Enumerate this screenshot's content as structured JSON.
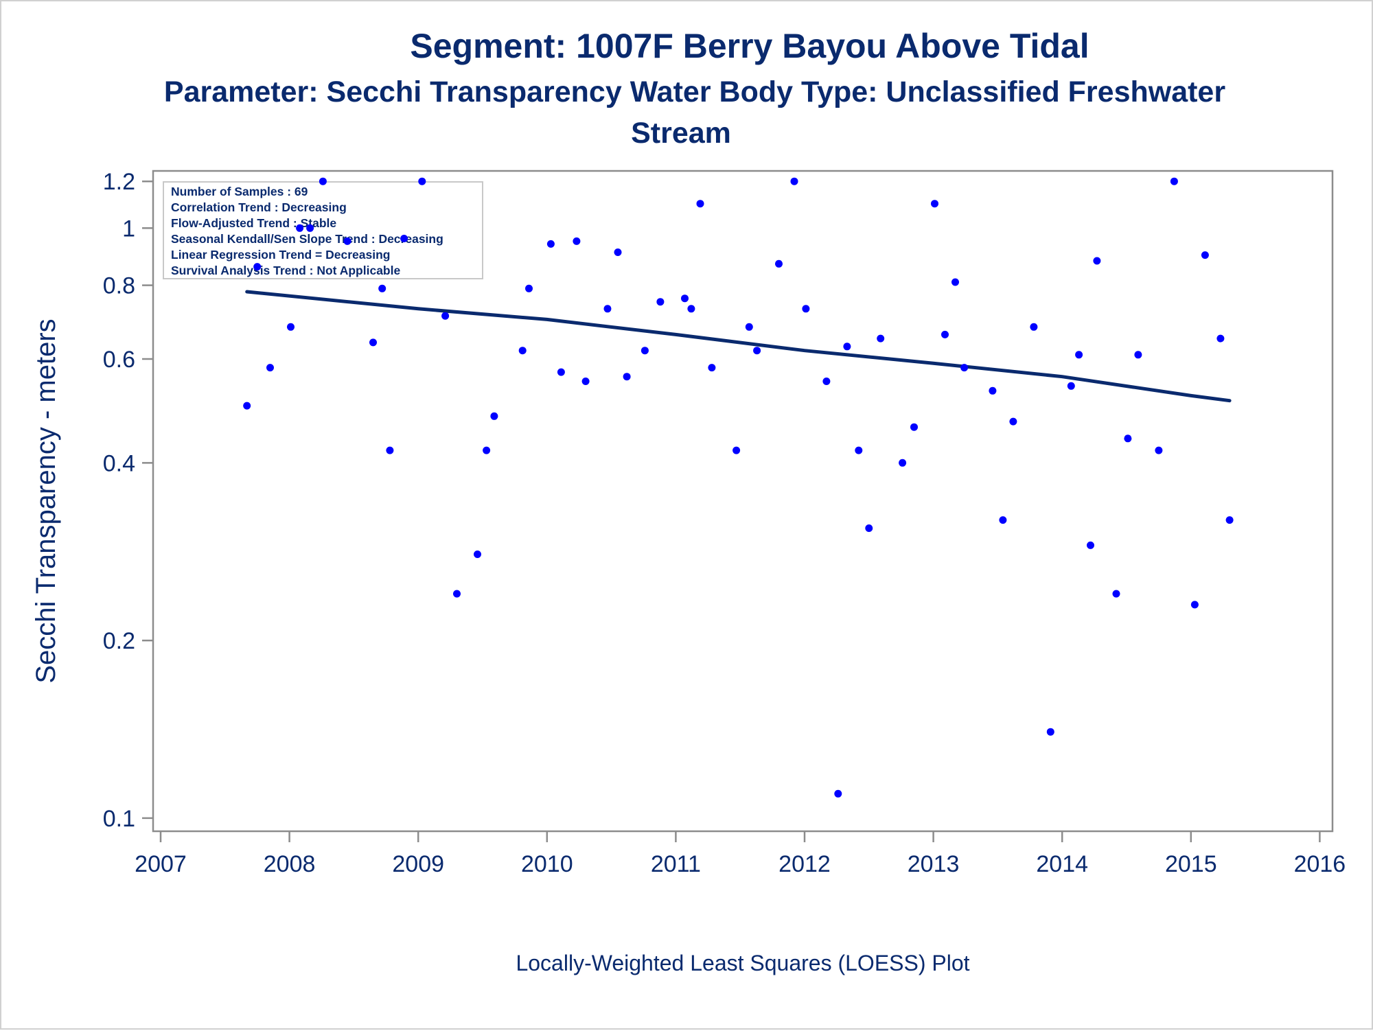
{
  "chart_data": {
    "type": "scatter",
    "title": "Segment: 1007F  Berry Bayou Above Tidal",
    "subtitle_line1": "Parameter: Secchi Transparency   Water Body Type: Unclassified Freshwater",
    "subtitle_line2": "Stream",
    "ylabel": "Secchi Transparency - meters",
    "footnote": "Locally-Weighted Least Squares (LOESS) Plot",
    "y_scale": "log",
    "ylim": [
      0.095,
      1.25
    ],
    "xlim": [
      2007,
      2016
    ],
    "yticks": [
      "0.1",
      "0.2",
      "0.4",
      "0.6",
      "0.8",
      "1",
      "1.2"
    ],
    "xticks": [
      "2007",
      "2008",
      "2009",
      "2010",
      "2011",
      "2012",
      "2013",
      "2014",
      "2015",
      "2016"
    ],
    "grid": false,
    "inset_position": "top-left",
    "inset_lines": [
      "Number of Samples : 69",
      "Correlation Trend : Decreasing",
      "Flow-Adjusted Trend : Stable",
      "Seasonal Kendall/Sen Slope Trend : Decreasing",
      "Linear Regression Trend = Decreasing",
      "Survival Analysis Trend : Not Applicable"
    ],
    "colors": {
      "points": "#0000ff",
      "trend_line": "#0a2a6e",
      "text": "#0a2a6e",
      "axis": "#8c8c8c"
    },
    "points": [
      {
        "x": 2007.67,
        "y": 0.5
      },
      {
        "x": 2007.75,
        "y": 0.86
      },
      {
        "x": 2007.85,
        "y": 0.58
      },
      {
        "x": 2008.01,
        "y": 0.68
      },
      {
        "x": 2008.08,
        "y": 1.0
      },
      {
        "x": 2008.16,
        "y": 1.0
      },
      {
        "x": 2008.26,
        "y": 1.2
      },
      {
        "x": 2008.45,
        "y": 0.95
      },
      {
        "x": 2008.65,
        "y": 0.64
      },
      {
        "x": 2008.72,
        "y": 0.79
      },
      {
        "x": 2008.78,
        "y": 0.42
      },
      {
        "x": 2008.89,
        "y": 0.96
      },
      {
        "x": 2009.03,
        "y": 1.2
      },
      {
        "x": 2009.21,
        "y": 0.71
      },
      {
        "x": 2009.3,
        "y": 0.24
      },
      {
        "x": 2009.46,
        "y": 0.28
      },
      {
        "x": 2009.53,
        "y": 0.42
      },
      {
        "x": 2009.59,
        "y": 0.48
      },
      {
        "x": 2009.81,
        "y": 0.62
      },
      {
        "x": 2009.86,
        "y": 0.79
      },
      {
        "x": 2010.03,
        "y": 0.94
      },
      {
        "x": 2010.11,
        "y": 0.57
      },
      {
        "x": 2010.23,
        "y": 0.95
      },
      {
        "x": 2010.3,
        "y": 0.55
      },
      {
        "x": 2010.47,
        "y": 0.73
      },
      {
        "x": 2010.55,
        "y": 0.91
      },
      {
        "x": 2010.62,
        "y": 0.56
      },
      {
        "x": 2010.76,
        "y": 0.62
      },
      {
        "x": 2010.88,
        "y": 0.75
      },
      {
        "x": 2011.07,
        "y": 0.76
      },
      {
        "x": 2011.12,
        "y": 0.73
      },
      {
        "x": 2011.19,
        "y": 1.1
      },
      {
        "x": 2011.28,
        "y": 0.58
      },
      {
        "x": 2011.47,
        "y": 0.42
      },
      {
        "x": 2011.57,
        "y": 0.68
      },
      {
        "x": 2011.63,
        "y": 0.62
      },
      {
        "x": 2011.8,
        "y": 0.87
      },
      {
        "x": 2011.92,
        "y": 1.2
      },
      {
        "x": 2012.01,
        "y": 0.73
      },
      {
        "x": 2012.17,
        "y": 0.55
      },
      {
        "x": 2012.26,
        "y": 0.11
      },
      {
        "x": 2012.33,
        "y": 0.63
      },
      {
        "x": 2012.42,
        "y": 0.42
      },
      {
        "x": 2012.5,
        "y": 0.31
      },
      {
        "x": 2012.59,
        "y": 0.65
      },
      {
        "x": 2012.76,
        "y": 0.4
      },
      {
        "x": 2012.85,
        "y": 0.46
      },
      {
        "x": 2013.01,
        "y": 1.1
      },
      {
        "x": 2013.09,
        "y": 0.66
      },
      {
        "x": 2013.17,
        "y": 0.81
      },
      {
        "x": 2013.24,
        "y": 0.58
      },
      {
        "x": 2013.46,
        "y": 0.53
      },
      {
        "x": 2013.54,
        "y": 0.32
      },
      {
        "x": 2013.62,
        "y": 0.47
      },
      {
        "x": 2013.78,
        "y": 0.68
      },
      {
        "x": 2013.91,
        "y": 0.14
      },
      {
        "x": 2014.07,
        "y": 0.54
      },
      {
        "x": 2014.13,
        "y": 0.61
      },
      {
        "x": 2014.22,
        "y": 0.29
      },
      {
        "x": 2014.27,
        "y": 0.88
      },
      {
        "x": 2014.42,
        "y": 0.24
      },
      {
        "x": 2014.51,
        "y": 0.44
      },
      {
        "x": 2014.59,
        "y": 0.61
      },
      {
        "x": 2014.75,
        "y": 0.42
      },
      {
        "x": 2014.87,
        "y": 1.2
      },
      {
        "x": 2015.03,
        "y": 0.23
      },
      {
        "x": 2015.11,
        "y": 0.9
      },
      {
        "x": 2015.23,
        "y": 0.65
      },
      {
        "x": 2015.3,
        "y": 0.32
      }
    ],
    "trend_line": [
      {
        "x": 2007.67,
        "y": 0.78
      },
      {
        "x": 2009.0,
        "y": 0.73
      },
      {
        "x": 2010.0,
        "y": 0.7
      },
      {
        "x": 2011.0,
        "y": 0.66
      },
      {
        "x": 2012.0,
        "y": 0.62
      },
      {
        "x": 2013.0,
        "y": 0.59
      },
      {
        "x": 2014.0,
        "y": 0.56
      },
      {
        "x": 2015.0,
        "y": 0.52
      },
      {
        "x": 2015.3,
        "y": 0.51
      }
    ]
  }
}
